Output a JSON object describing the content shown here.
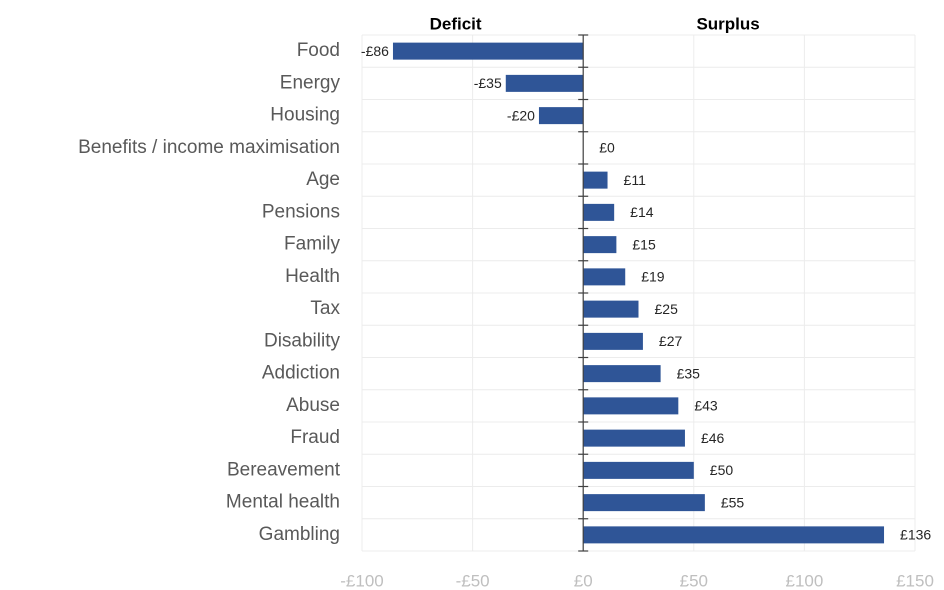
{
  "chart_data": {
    "type": "bar",
    "orientation": "horizontal",
    "annotations": [
      "Deficit",
      "Surplus"
    ],
    "categories": [
      "Food",
      "Energy",
      "Housing",
      "Benefits / income maximisation",
      "Age",
      "Pensions",
      "Family",
      "Health",
      "Tax",
      "Disability",
      "Addiction",
      "Abuse",
      "Fraud",
      "Bereavement",
      "Mental health",
      "Gambling"
    ],
    "values": [
      -86,
      -35,
      -20,
      0,
      11,
      14,
      15,
      19,
      25,
      27,
      35,
      43,
      46,
      50,
      55,
      136
    ],
    "value_labels": [
      "-£86",
      "-£35",
      "-£20",
      "£0",
      "£11",
      "£14",
      "£15",
      "£19",
      "£25",
      "£27",
      "£35",
      "£43",
      "£46",
      "£50",
      "£55",
      "£136"
    ],
    "color": "#2f5597",
    "xlim": [
      -100,
      150
    ],
    "xticks": [
      {
        "value": -100,
        "label": "-£100"
      },
      {
        "value": -50,
        "label": "-£50"
      },
      {
        "value": 0,
        "label": "£0"
      },
      {
        "value": 50,
        "label": "£50"
      },
      {
        "value": 100,
        "label": "£100"
      },
      {
        "value": 150,
        "label": "£150"
      }
    ],
    "grid": true
  }
}
